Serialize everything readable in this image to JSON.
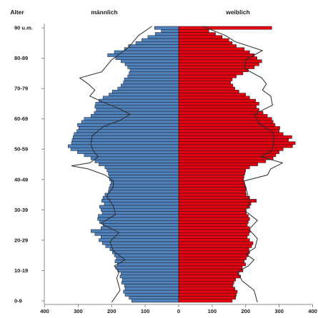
{
  "chart_data": {
    "type": "bar",
    "orientation": "horizontal",
    "layout": "population-pyramid",
    "headers": {
      "age_axis": "Alter",
      "left": "männlich",
      "right": "weiblich"
    },
    "x_ticks_left": [
      "400",
      "300",
      "200",
      "100",
      "0"
    ],
    "x_ticks_right": [
      "100",
      "200",
      "300",
      "400"
    ],
    "xlim": [
      0,
      400
    ],
    "y_tick_labels": [
      "0-9",
      "10-19",
      "20-29",
      "30-39",
      "40-49",
      "50-59",
      "60-69",
      "70-79",
      "80-89",
      "90 u.m."
    ],
    "y_tick_ages": [
      0,
      10,
      20,
      30,
      40,
      50,
      60,
      70,
      80,
      90
    ],
    "age_count": 91,
    "series": [
      {
        "name": "männlich",
        "color": "#4f81bd",
        "values": [
          140,
          148,
          160,
          165,
          160,
          162,
          170,
          168,
          175,
          172,
          182,
          188,
          183,
          190,
          186,
          192,
          198,
          205,
          218,
          228,
          238,
          232,
          250,
          262,
          232,
          226,
          236,
          242,
          240,
          228,
          232,
          236,
          222,
          230,
          226,
          220,
          210,
          208,
          205,
          202,
          206,
          208,
          210,
          214,
          220,
          238,
          250,
          262,
          282,
          302,
          322,
          330,
          320,
          318,
          315,
          312,
          304,
          298,
          302,
          290,
          282,
          262,
          252,
          246,
          250,
          248,
          238,
          226,
          208,
          198,
          182,
          172,
          165,
          162,
          152,
          148,
          145,
          152,
          160,
          172,
          188,
          212,
          192,
          162,
          150,
          128,
          110,
          92,
          70,
          52,
          72
        ]
      },
      {
        "name": "weiblich",
        "color": "#e3000f",
        "values": [
          160,
          170,
          172,
          175,
          168,
          162,
          165,
          170,
          185,
          180,
          192,
          190,
          200,
          196,
          202,
          208,
          212,
          210,
          218,
          222,
          212,
          205,
          210,
          214,
          212,
          205,
          208,
          212,
          208,
          202,
          200,
          212,
          216,
          232,
          212,
          202,
          200,
          202,
          198,
          196,
          194,
          195,
          198,
          200,
          212,
          236,
          260,
          282,
          290,
          300,
          312,
          340,
          348,
          328,
          338,
          312,
          300,
          302,
          288,
          282,
          278,
          265,
          252,
          240,
          232,
          240,
          230,
          212,
          200,
          180,
          168,
          162,
          155,
          160,
          172,
          192,
          208,
          226,
          240,
          248,
          234,
          226,
          212,
          196,
          172,
          160,
          150,
          130,
          110,
          90,
          278
        ]
      }
    ],
    "outline_series": [
      {
        "name": "",
        "side": "männlich",
        "color": "#2b2b2b",
        "points": [
          [
            0,
            200
          ],
          [
            4,
            175
          ],
          [
            8,
            185
          ],
          [
            10,
            178
          ],
          [
            12,
            192
          ],
          [
            14,
            160
          ],
          [
            17,
            195
          ],
          [
            20,
            205
          ],
          [
            23,
            178
          ],
          [
            26,
            232
          ],
          [
            29,
            188
          ],
          [
            32,
            196
          ],
          [
            35,
            215
          ],
          [
            38,
            195
          ],
          [
            40,
            195
          ],
          [
            42,
            220
          ],
          [
            44,
            270
          ],
          [
            45,
            320
          ],
          [
            46,
            265
          ],
          [
            48,
            240
          ],
          [
            50,
            255
          ],
          [
            52,
            262
          ],
          [
            55,
            258
          ],
          [
            58,
            224
          ],
          [
            60,
            175
          ],
          [
            62,
            145
          ],
          [
            64,
            180
          ],
          [
            66,
            225
          ],
          [
            68,
            265
          ],
          [
            70,
            250
          ],
          [
            72,
            270
          ],
          [
            74,
            295
          ],
          [
            76,
            230
          ],
          [
            80,
            200
          ],
          [
            84,
            150
          ],
          [
            88,
            120
          ],
          [
            91,
            80
          ]
        ]
      },
      {
        "name": "",
        "side": "weiblich",
        "color": "#2b2b2b",
        "points": [
          [
            0,
            235
          ],
          [
            4,
            225
          ],
          [
            7,
            190
          ],
          [
            10,
            175
          ],
          [
            12,
            208
          ],
          [
            14,
            225
          ],
          [
            16,
            200
          ],
          [
            18,
            228
          ],
          [
            21,
            235
          ],
          [
            24,
            210
          ],
          [
            27,
            235
          ],
          [
            30,
            200
          ],
          [
            33,
            212
          ],
          [
            36,
            205
          ],
          [
            38,
            200
          ],
          [
            40,
            195
          ],
          [
            42,
            265
          ],
          [
            44,
            275
          ],
          [
            46,
            310
          ],
          [
            48,
            245
          ],
          [
            50,
            278
          ],
          [
            53,
            285
          ],
          [
            56,
            282
          ],
          [
            59,
            240
          ],
          [
            62,
            225
          ],
          [
            65,
            280
          ],
          [
            68,
            275
          ],
          [
            70,
            250
          ],
          [
            72,
            262
          ],
          [
            74,
            248
          ],
          [
            77,
            198
          ],
          [
            80,
            200
          ],
          [
            83,
            250
          ],
          [
            86,
            168
          ],
          [
            88,
            140
          ],
          [
            91,
            72
          ]
        ]
      }
    ]
  }
}
